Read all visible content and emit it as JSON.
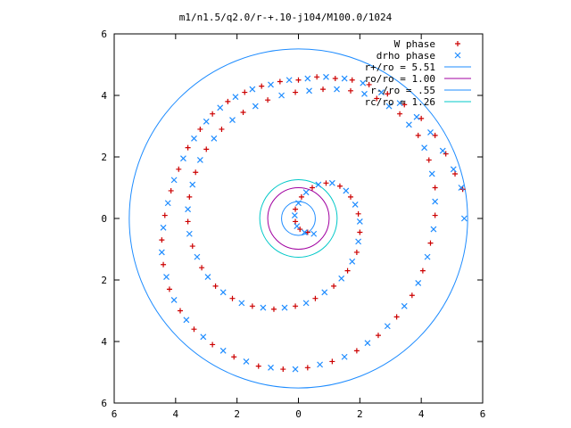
{
  "chart_data": {
    "type": "scatter",
    "title": "m1/n1.5/q2.0/r-+.10-j104/M100.0/1024",
    "xlabel": "",
    "ylabel": "",
    "xlim": [
      -6,
      6
    ],
    "ylim": [
      -6,
      6
    ],
    "x_tick_labels": [
      "6",
      "4",
      "2",
      "0",
      "2",
      "4",
      "6"
    ],
    "y_tick_labels": [
      "6",
      "4",
      "2",
      "0",
      "2",
      "4",
      "6"
    ],
    "grid": false,
    "legend_position": "top-right",
    "legend": [
      {
        "label": "W phase",
        "kind": "points",
        "marker": "plus",
        "color": "#cc0000"
      },
      {
        "label": "drho phase",
        "kind": "points",
        "marker": "cross",
        "color": "#1e8cff"
      },
      {
        "label": "r+/ro = 5.51",
        "kind": "circle",
        "radius": 5.51,
        "color": "#1e8cff"
      },
      {
        "label": "ro/ro = 1.00",
        "kind": "circle",
        "radius": 1.0,
        "color": "#a000a0"
      },
      {
        "label": "r-/ro = .55",
        "kind": "circle",
        "radius": 0.55,
        "color": "#1e8cff"
      },
      {
        "label": "rc/ro = 1.26",
        "kind": "circle",
        "radius": 1.26,
        "color": "#00c8c8"
      }
    ],
    "series": [
      {
        "name": "W phase",
        "marker": "plus",
        "color": "#cc0000",
        "points": [
          [
            5.35,
            0.95
          ],
          [
            5.1,
            1.45
          ],
          [
            4.8,
            2.1
          ],
          [
            4.45,
            2.7
          ],
          [
            4.0,
            3.25
          ],
          [
            3.45,
            3.7
          ],
          [
            2.9,
            4.05
          ],
          [
            2.3,
            4.35
          ],
          [
            1.75,
            4.5
          ],
          [
            1.2,
            4.55
          ],
          [
            0.6,
            4.6
          ],
          [
            0.0,
            4.5
          ],
          [
            -0.6,
            4.45
          ],
          [
            -1.2,
            4.3
          ],
          [
            -1.75,
            4.1
          ],
          [
            -2.3,
            3.8
          ],
          [
            -2.8,
            3.4
          ],
          [
            -3.2,
            2.9
          ],
          [
            -3.6,
            2.3
          ],
          [
            -3.9,
            1.6
          ],
          [
            -4.15,
            0.9
          ],
          [
            -4.35,
            0.1
          ],
          [
            -4.45,
            -0.7
          ],
          [
            -4.4,
            -1.5
          ],
          [
            -4.2,
            -2.3
          ],
          [
            -3.85,
            -3.0
          ],
          [
            -3.4,
            -3.6
          ],
          [
            -2.8,
            -4.1
          ],
          [
            -2.1,
            -4.5
          ],
          [
            -1.3,
            -4.8
          ],
          [
            -0.5,
            -4.9
          ],
          [
            0.3,
            -4.85
          ],
          [
            1.1,
            -4.65
          ],
          [
            1.9,
            -4.3
          ],
          [
            2.6,
            -3.8
          ],
          [
            3.2,
            -3.2
          ],
          [
            3.7,
            -2.5
          ],
          [
            4.05,
            -1.7
          ],
          [
            4.3,
            -0.8
          ],
          [
            4.45,
            0.1
          ],
          [
            4.45,
            1.0
          ],
          [
            4.25,
            1.9
          ],
          [
            3.9,
            2.7
          ],
          [
            3.3,
            3.4
          ],
          [
            2.55,
            3.9
          ],
          [
            1.7,
            4.15
          ],
          [
            0.8,
            4.2
          ],
          [
            -0.1,
            4.1
          ],
          [
            -1.0,
            3.85
          ],
          [
            -1.8,
            3.45
          ],
          [
            -2.5,
            2.9
          ],
          [
            -3.0,
            2.25
          ],
          [
            -3.35,
            1.5
          ],
          [
            -3.55,
            0.7
          ],
          [
            -3.6,
            -0.1
          ],
          [
            -3.45,
            -0.9
          ],
          [
            -3.15,
            -1.6
          ],
          [
            -2.7,
            -2.2
          ],
          [
            -2.15,
            -2.6
          ],
          [
            -1.5,
            -2.85
          ],
          [
            -0.8,
            -2.95
          ],
          [
            -0.1,
            -2.85
          ],
          [
            0.55,
            -2.6
          ],
          [
            1.15,
            -2.2
          ],
          [
            1.6,
            -1.7
          ],
          [
            1.9,
            -1.1
          ],
          [
            2.0,
            -0.45
          ],
          [
            1.95,
            0.15
          ],
          [
            1.7,
            0.7
          ],
          [
            1.35,
            1.05
          ],
          [
            0.9,
            1.15
          ],
          [
            0.45,
            1.0
          ],
          [
            0.1,
            0.7
          ],
          [
            -0.1,
            0.3
          ],
          [
            -0.1,
            -0.1
          ],
          [
            0.05,
            -0.35
          ],
          [
            0.3,
            -0.45
          ]
        ]
      },
      {
        "name": "drho phase",
        "marker": "cross",
        "color": "#1e8cff",
        "points": [
          [
            5.4,
            0.0
          ],
          [
            5.3,
            1.0
          ],
          [
            5.05,
            1.6
          ],
          [
            4.7,
            2.2
          ],
          [
            4.3,
            2.8
          ],
          [
            3.85,
            3.3
          ],
          [
            3.3,
            3.75
          ],
          [
            2.7,
            4.1
          ],
          [
            2.1,
            4.4
          ],
          [
            1.5,
            4.55
          ],
          [
            0.9,
            4.6
          ],
          [
            0.3,
            4.55
          ],
          [
            -0.3,
            4.5
          ],
          [
            -0.9,
            4.35
          ],
          [
            -1.5,
            4.2
          ],
          [
            -2.05,
            3.95
          ],
          [
            -2.55,
            3.6
          ],
          [
            -3.0,
            3.15
          ],
          [
            -3.4,
            2.6
          ],
          [
            -3.75,
            1.95
          ],
          [
            -4.05,
            1.25
          ],
          [
            -4.25,
            0.5
          ],
          [
            -4.4,
            -0.3
          ],
          [
            -4.45,
            -1.1
          ],
          [
            -4.3,
            -1.9
          ],
          [
            -4.05,
            -2.65
          ],
          [
            -3.65,
            -3.3
          ],
          [
            -3.1,
            -3.85
          ],
          [
            -2.45,
            -4.3
          ],
          [
            -1.7,
            -4.65
          ],
          [
            -0.9,
            -4.85
          ],
          [
            -0.1,
            -4.9
          ],
          [
            0.7,
            -4.75
          ],
          [
            1.5,
            -4.5
          ],
          [
            2.25,
            -4.05
          ],
          [
            2.9,
            -3.5
          ],
          [
            3.45,
            -2.85
          ],
          [
            3.9,
            -2.1
          ],
          [
            4.2,
            -1.25
          ],
          [
            4.4,
            -0.35
          ],
          [
            4.45,
            0.55
          ],
          [
            4.35,
            1.45
          ],
          [
            4.1,
            2.3
          ],
          [
            3.6,
            3.05
          ],
          [
            2.95,
            3.65
          ],
          [
            2.15,
            4.05
          ],
          [
            1.25,
            4.2
          ],
          [
            0.35,
            4.15
          ],
          [
            -0.55,
            4.0
          ],
          [
            -1.4,
            3.65
          ],
          [
            -2.15,
            3.2
          ],
          [
            -2.75,
            2.6
          ],
          [
            -3.2,
            1.9
          ],
          [
            -3.45,
            1.1
          ],
          [
            -3.6,
            0.3
          ],
          [
            -3.55,
            -0.5
          ],
          [
            -3.3,
            -1.25
          ],
          [
            -2.95,
            -1.9
          ],
          [
            -2.45,
            -2.4
          ],
          [
            -1.85,
            -2.75
          ],
          [
            -1.15,
            -2.9
          ],
          [
            -0.45,
            -2.9
          ],
          [
            0.25,
            -2.75
          ],
          [
            0.85,
            -2.4
          ],
          [
            1.4,
            -1.95
          ],
          [
            1.75,
            -1.4
          ],
          [
            1.95,
            -0.75
          ],
          [
            2.0,
            -0.1
          ],
          [
            1.85,
            0.45
          ],
          [
            1.55,
            0.9
          ],
          [
            1.1,
            1.15
          ],
          [
            0.65,
            1.1
          ],
          [
            0.25,
            0.85
          ],
          [
            0.0,
            0.5
          ],
          [
            -0.12,
            0.1
          ],
          [
            -0.05,
            -0.25
          ],
          [
            0.2,
            -0.45
          ],
          [
            0.5,
            -0.5
          ]
        ]
      }
    ]
  }
}
